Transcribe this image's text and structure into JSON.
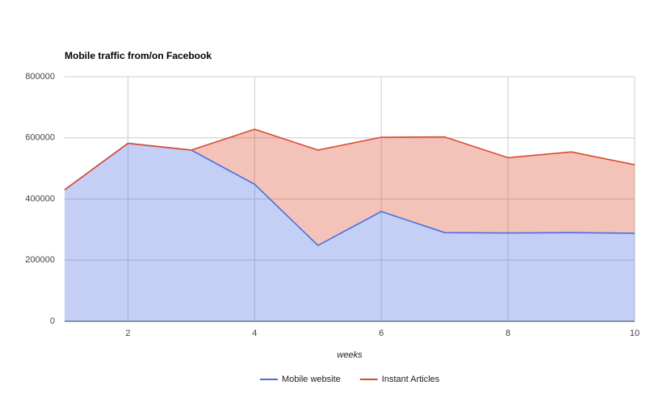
{
  "chart_data": {
    "type": "stacked-area",
    "title": "Mobile traffic from/on Facebook",
    "x_label": "weeks",
    "x": [
      1,
      2,
      3,
      4,
      5,
      6,
      7,
      8,
      9,
      10
    ],
    "series": [
      {
        "name": "Mobile website",
        "color": "#4a6ee0",
        "values": [
          430000,
          582000,
          560000,
          448000,
          248000,
          359000,
          290000,
          289000,
          290000,
          288000
        ]
      },
      {
        "name": "Instant Articles",
        "color": "#dc4a2e",
        "values": [
          0,
          0,
          0,
          180000,
          312000,
          243000,
          313000,
          246000,
          264000,
          224000
        ]
      }
    ],
    "xlim": [
      1,
      10
    ],
    "xticks": [
      2,
      4,
      6,
      8,
      10
    ],
    "ylim": [
      0,
      800000
    ],
    "yticks": [
      0,
      200000,
      400000,
      600000,
      800000
    ],
    "grid": true,
    "legend": "bottom"
  }
}
